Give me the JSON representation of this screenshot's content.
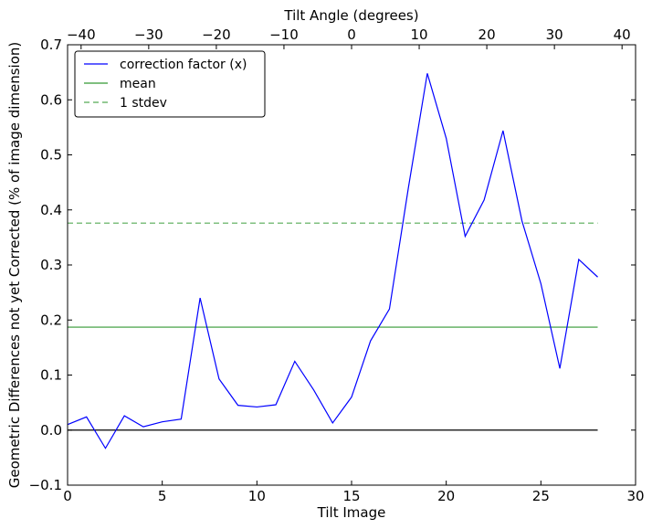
{
  "chart_data": {
    "type": "line",
    "xlabel": "Tilt Image",
    "ylabel": "Geometric Differences not yet Corrected (% of image dimension)",
    "top_xlabel": "Tilt Angle (degrees)",
    "xlim": [
      0,
      30
    ],
    "ylim": [
      -0.1,
      0.7
    ],
    "top_xlim": [
      -42.0,
      42.0
    ],
    "x_ticks": [
      0,
      5,
      10,
      15,
      20,
      25,
      30
    ],
    "y_ticks": [
      -0.1,
      0.0,
      0.1,
      0.2,
      0.3,
      0.4,
      0.5,
      0.6,
      0.7
    ],
    "top_ticks": [
      -40,
      -30,
      -20,
      -10,
      0,
      10,
      20,
      30,
      40
    ],
    "x_tick_labels": [
      "0",
      "5",
      "10",
      "15",
      "20",
      "25",
      "30"
    ],
    "y_tick_labels": [
      "−0.1",
      "0.0",
      "0.1",
      "0.2",
      "0.3",
      "0.4",
      "0.5",
      "0.6",
      "0.7"
    ],
    "top_tick_labels": [
      "−40",
      "−30",
      "−20",
      "−10",
      "0",
      "10",
      "20",
      "30",
      "40"
    ],
    "grid": false,
    "legend_position": "top-left",
    "series": [
      {
        "name": "correction factor (x)",
        "color": "#0000ff",
        "style": "solid",
        "x": [
          0,
          1,
          2,
          3,
          4,
          5,
          6,
          7,
          8,
          9,
          10,
          11,
          12,
          13,
          14,
          15,
          16,
          17,
          18,
          19,
          20,
          21,
          22,
          23,
          24,
          25,
          26,
          27,
          28
        ],
        "y": [
          0.01,
          0.024,
          -0.033,
          0.026,
          0.006,
          0.015,
          0.02,
          0.24,
          0.093,
          0.045,
          0.042,
          0.046,
          0.125,
          0.073,
          0.013,
          0.06,
          0.162,
          0.22,
          0.44,
          0.648,
          0.53,
          0.352,
          0.418,
          0.544,
          0.38,
          0.266,
          0.112,
          0.31,
          0.278
        ]
      },
      {
        "name": "mean",
        "color": "#339933",
        "style": "solid",
        "x": [
          0,
          28
        ],
        "y": [
          0.187,
          0.187
        ]
      },
      {
        "name": "1 stdev",
        "color": "#55aa55",
        "style": "dashed",
        "x": [
          0,
          28
        ],
        "y": [
          0.376,
          0.376
        ]
      }
    ],
    "baseline": {
      "color": "#000000",
      "x": [
        0,
        28
      ],
      "y": [
        0.0,
        0.0
      ]
    }
  }
}
